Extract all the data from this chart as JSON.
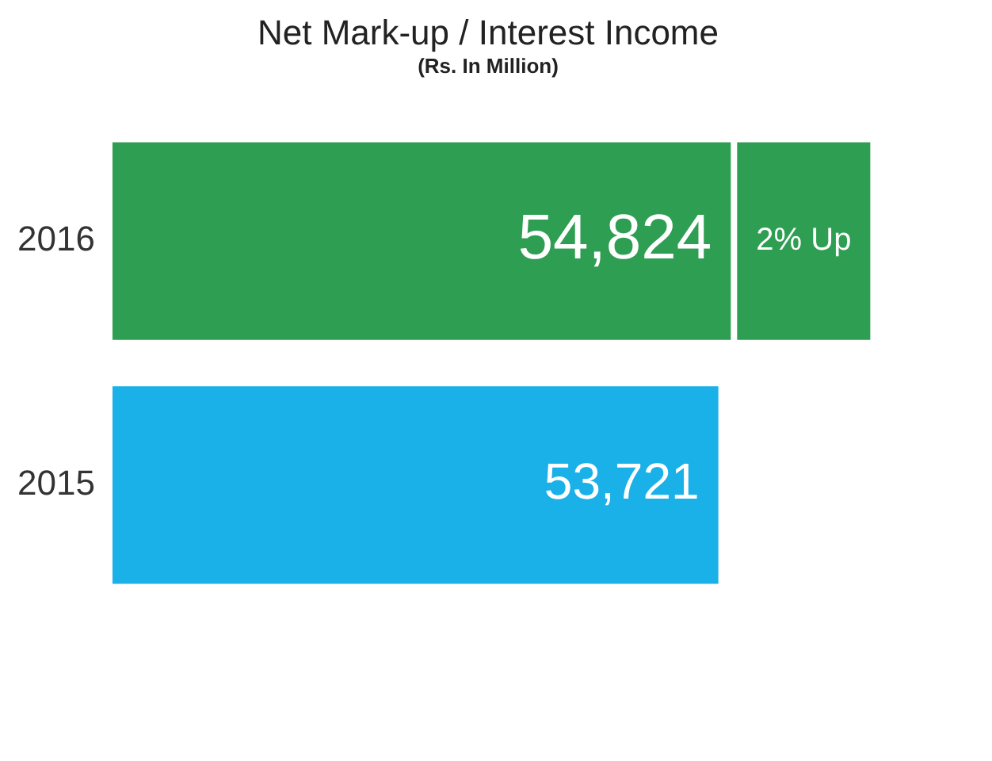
{
  "chart_data": {
    "type": "bar",
    "orientation": "horizontal",
    "title": "Net Mark-up / Interest Income",
    "subtitle": "(Rs. In Million)",
    "categories": [
      "2016",
      "2015"
    ],
    "values": [
      54824,
      53721
    ],
    "value_labels": [
      "54,824",
      "53,721"
    ],
    "colors": [
      "#2e9e52",
      "#1ab0e8"
    ],
    "annotations": [
      "2% Up"
    ],
    "legend": false,
    "grid": false
  }
}
